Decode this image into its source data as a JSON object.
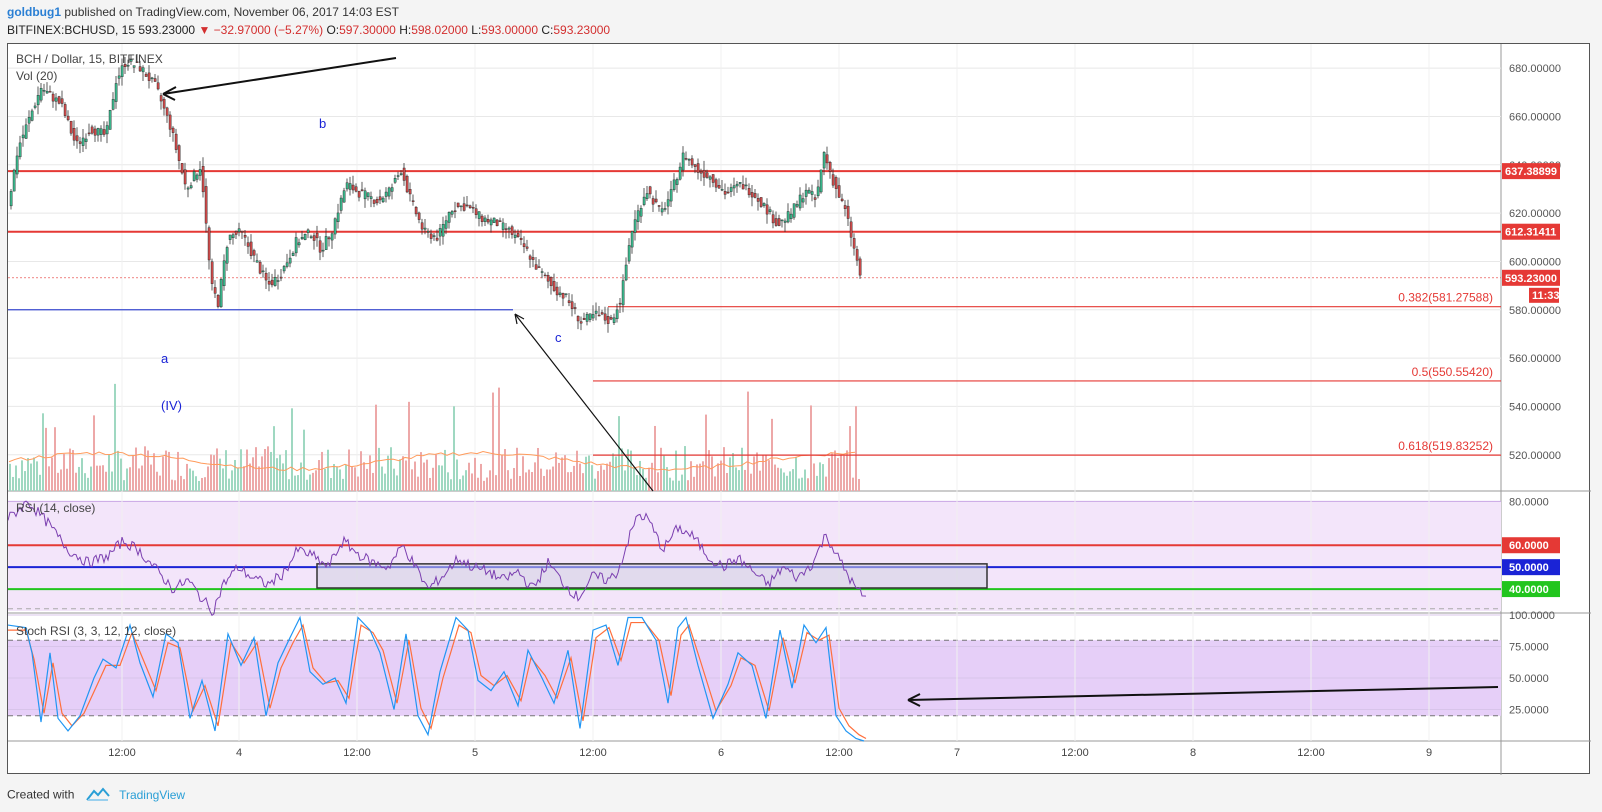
{
  "header": {
    "user": "goldbug1",
    "published": "published on TradingView.com, November 06, 2017 14:03 EST",
    "symbol": "BITFINEX:BCHUSD, 15",
    "last": "593.23000",
    "change": "▼ −32.97000 (−5.27%)",
    "ohlc": {
      "o_label": "O:",
      "o": "597.30000",
      "h_label": "H:",
      "h": "598.02000",
      "l_label": "L:",
      "l": "593.00000",
      "c_label": "C:",
      "c": "593.23000"
    }
  },
  "footer": {
    "created": "Created with",
    "brand": "TradingView"
  },
  "colors": {
    "up": "#3bb38a",
    "down": "#c94a4a",
    "level": "#e53935",
    "fib": "#e53935",
    "rsi": "#7b3fb0",
    "rsiBand": "#f3e5fa",
    "stochBand": "#e6cff8",
    "stochK": "#2196f3",
    "stochD": "#ff6f3c",
    "wave": "#1a23d6"
  },
  "chart_data": [
    {
      "type": "candlestick",
      "title": "BCH / Dollar, 15, BITFINEX",
      "volume_label": "Vol (20)",
      "ylim": [
        505,
        690
      ],
      "y_ticks": [
        "680.00000",
        "660.00000",
        "640.00000",
        "620.00000",
        "600.00000",
        "580.00000",
        "560.00000",
        "540.00000",
        "520.00000"
      ],
      "x_ticks": [
        "12:00",
        "4",
        "12:00",
        "5",
        "12:00",
        "6",
        "12:00",
        "7",
        "12:00",
        "8",
        "12:00",
        "9"
      ],
      "price_path": [
        [
          0,
          618
        ],
        [
          12,
          647
        ],
        [
          35,
          672
        ],
        [
          55,
          665
        ],
        [
          70,
          648
        ],
        [
          85,
          655
        ],
        [
          100,
          652
        ],
        [
          110,
          675
        ],
        [
          120,
          683
        ],
        [
          135,
          680
        ],
        [
          150,
          672
        ],
        [
          165,
          655
        ],
        [
          180,
          630
        ],
        [
          195,
          640
        ],
        [
          205,
          590
        ],
        [
          212,
          583
        ],
        [
          222,
          610
        ],
        [
          235,
          612
        ],
        [
          250,
          600
        ],
        [
          262,
          590
        ],
        [
          275,
          595
        ],
        [
          290,
          608
        ],
        [
          305,
          612
        ],
        [
          315,
          605
        ],
        [
          325,
          612
        ],
        [
          340,
          632
        ],
        [
          355,
          628
        ],
        [
          372,
          625
        ],
        [
          385,
          630
        ],
        [
          395,
          638
        ],
        [
          405,
          625
        ],
        [
          418,
          612
        ],
        [
          432,
          610
        ],
        [
          445,
          622
        ],
        [
          460,
          623
        ],
        [
          475,
          618
        ],
        [
          490,
          616
        ],
        [
          505,
          612
        ],
        [
          520,
          605
        ],
        [
          530,
          598
        ],
        [
          545,
          590
        ],
        [
          560,
          585
        ],
        [
          575,
          575
        ],
        [
          590,
          578
        ],
        [
          605,
          575
        ],
        [
          615,
          585
        ],
        [
          625,
          612
        ],
        [
          640,
          630
        ],
        [
          655,
          620
        ],
        [
          665,
          628
        ],
        [
          678,
          645
        ],
        [
          690,
          638
        ],
        [
          705,
          635
        ],
        [
          720,
          628
        ],
        [
          735,
          632
        ],
        [
          748,
          628
        ],
        [
          760,
          622
        ],
        [
          772,
          615
        ],
        [
          785,
          620
        ],
        [
          800,
          630
        ],
        [
          810,
          625
        ],
        [
          818,
          645
        ],
        [
          828,
          632
        ],
        [
          840,
          620
        ],
        [
          848,
          605
        ],
        [
          852,
          598
        ],
        [
          855,
          593
        ]
      ],
      "levels": [
        {
          "label": "637.38899",
          "value": 637.38899
        },
        {
          "label": "612.31411",
          "value": 612.31411
        }
      ],
      "last_price_label": "593.23000",
      "countdown_label": "11:33",
      "blue_line_value": 580,
      "fib_levels": [
        {
          "label": "0.382(581.27588)",
          "value": 581.27588
        },
        {
          "label": "0.5(550.55420)",
          "value": 550.5542
        },
        {
          "label": "0.618(519.83252)",
          "value": 519.83252
        }
      ],
      "wave_labels": {
        "a": "a",
        "b": "b",
        "c": "c",
        "iv": "(IV)"
      }
    },
    {
      "type": "line",
      "title": "RSI (14, close)",
      "ylim": [
        30,
        82
      ],
      "y_ticks": [
        "80.0000"
      ],
      "levels": [
        {
          "label": "60.0000",
          "value": 60,
          "color": "#e53935"
        },
        {
          "label": "50.0000",
          "value": 50,
          "color": "#1a23d6"
        },
        {
          "label": "40.0000",
          "value": 40,
          "color": "#22c51e"
        }
      ],
      "series": [
        {
          "values": [
            [
              0,
              72
            ],
            [
              20,
              80
            ],
            [
              40,
              70
            ],
            [
              60,
              58
            ],
            [
              80,
              52
            ],
            [
              100,
              55
            ],
            [
              115,
              62
            ],
            [
              130,
              58
            ],
            [
              150,
              48
            ],
            [
              165,
              40
            ],
            [
              180,
              44
            ],
            [
              195,
              35
            ],
            [
              205,
              30
            ],
            [
              215,
              42
            ],
            [
              230,
              50
            ],
            [
              245,
              45
            ],
            [
              260,
              42
            ],
            [
              275,
              47
            ],
            [
              290,
              58
            ],
            [
              305,
              55
            ],
            [
              320,
              50
            ],
            [
              335,
              62
            ],
            [
              350,
              56
            ],
            [
              365,
              52
            ],
            [
              380,
              50
            ],
            [
              395,
              60
            ],
            [
              410,
              48
            ],
            [
              420,
              40
            ],
            [
              435,
              46
            ],
            [
              450,
              54
            ],
            [
              465,
              50
            ],
            [
              480,
              48
            ],
            [
              495,
              44
            ],
            [
              510,
              48
            ],
            [
              525,
              40
            ],
            [
              540,
              52
            ],
            [
              555,
              43
            ],
            [
              570,
              36
            ],
            [
              585,
              46
            ],
            [
              600,
              44
            ],
            [
              610,
              48
            ],
            [
              620,
              62
            ],
            [
              630,
              74
            ],
            [
              640,
              72
            ],
            [
              655,
              58
            ],
            [
              670,
              68
            ],
            [
              685,
              64
            ],
            [
              700,
              55
            ],
            [
              715,
              50
            ],
            [
              730,
              54
            ],
            [
              745,
              48
            ],
            [
              760,
              42
            ],
            [
              775,
              50
            ],
            [
              790,
              45
            ],
            [
              805,
              52
            ],
            [
              818,
              65
            ],
            [
              828,
              56
            ],
            [
              838,
              48
            ],
            [
              848,
              40
            ],
            [
              858,
              36
            ]
          ]
        }
      ]
    },
    {
      "type": "line",
      "title": "Stoch RSI (3, 3, 12, 12, close)",
      "ylim": [
        0,
        100
      ],
      "y_ticks": [
        "100.0000",
        "75.0000",
        "50.0000",
        "25.0000"
      ],
      "series": [
        {
          "name": "K",
          "values": [
            [
              0,
              92
            ],
            [
              18,
              90
            ],
            [
              24,
              70
            ],
            [
              33,
              15
            ],
            [
              42,
              70
            ],
            [
              50,
              18
            ],
            [
              60,
              8
            ],
            [
              72,
              20
            ],
            [
              86,
              50
            ],
            [
              95,
              65
            ],
            [
              108,
              58
            ],
            [
              122,
              92
            ],
            [
              132,
              62
            ],
            [
              145,
              35
            ],
            [
              158,
              85
            ],
            [
              170,
              78
            ],
            [
              182,
              18
            ],
            [
              194,
              48
            ],
            [
              207,
              8
            ],
            [
              220,
              85
            ],
            [
              233,
              60
            ],
            [
              246,
              82
            ],
            [
              258,
              20
            ],
            [
              270,
              62
            ],
            [
              282,
              82
            ],
            [
              292,
              98
            ],
            [
              302,
              55
            ],
            [
              315,
              45
            ],
            [
              327,
              50
            ],
            [
              338,
              30
            ],
            [
              350,
              98
            ],
            [
              362,
              88
            ],
            [
              372,
              70
            ],
            [
              386,
              25
            ],
            [
              398,
              85
            ],
            [
              410,
              20
            ],
            [
              420,
              5
            ],
            [
              432,
              55
            ],
            [
              448,
              98
            ],
            [
              460,
              88
            ],
            [
              470,
              48
            ],
            [
              483,
              40
            ],
            [
              496,
              55
            ],
            [
              510,
              28
            ],
            [
              520,
              72
            ],
            [
              534,
              50
            ],
            [
              546,
              30
            ],
            [
              560,
              72
            ],
            [
              572,
              10
            ],
            [
              585,
              88
            ],
            [
              598,
              92
            ],
            [
              610,
              60
            ],
            [
              620,
              98
            ],
            [
              634,
              98
            ],
            [
              648,
              80
            ],
            [
              660,
              30
            ],
            [
              670,
              90
            ],
            [
              678,
              98
            ],
            [
              690,
              60
            ],
            [
              705,
              18
            ],
            [
              720,
              45
            ],
            [
              730,
              70
            ],
            [
              744,
              60
            ],
            [
              758,
              18
            ],
            [
              772,
              88
            ],
            [
              784,
              42
            ],
            [
              796,
              92
            ],
            [
              808,
              78
            ],
            [
              818,
              90
            ],
            [
              828,
              20
            ],
            [
              838,
              8
            ],
            [
              848,
              2
            ],
            [
              856,
              0
            ]
          ]
        },
        {
          "name": "D",
          "values": [
            [
              0,
              88
            ],
            [
              18,
              88
            ],
            [
              26,
              65
            ],
            [
              36,
              22
            ],
            [
              45,
              62
            ],
            [
              54,
              22
            ],
            [
              64,
              12
            ],
            [
              76,
              22
            ],
            [
              90,
              46
            ],
            [
              98,
              60
            ],
            [
              112,
              60
            ],
            [
              124,
              86
            ],
            [
              135,
              65
            ],
            [
              148,
              40
            ],
            [
              160,
              78
            ],
            [
              172,
              74
            ],
            [
              185,
              24
            ],
            [
              197,
              44
            ],
            [
              210,
              12
            ],
            [
              223,
              78
            ],
            [
              236,
              62
            ],
            [
              249,
              78
            ],
            [
              262,
              26
            ],
            [
              273,
              58
            ],
            [
              285,
              78
            ],
            [
              295,
              92
            ],
            [
              305,
              58
            ],
            [
              318,
              46
            ],
            [
              330,
              48
            ],
            [
              341,
              34
            ],
            [
              353,
              92
            ],
            [
              365,
              86
            ],
            [
              375,
              72
            ],
            [
              389,
              30
            ],
            [
              401,
              80
            ],
            [
              413,
              26
            ],
            [
              423,
              10
            ],
            [
              435,
              50
            ],
            [
              451,
              92
            ],
            [
              463,
              86
            ],
            [
              473,
              52
            ],
            [
              486,
              44
            ],
            [
              499,
              52
            ],
            [
              513,
              32
            ],
            [
              523,
              66
            ],
            [
              537,
              52
            ],
            [
              549,
              34
            ],
            [
              563,
              66
            ],
            [
              575,
              16
            ],
            [
              588,
              82
            ],
            [
              601,
              90
            ],
            [
              613,
              64
            ],
            [
              623,
              94
            ],
            [
              637,
              94
            ],
            [
              651,
              80
            ],
            [
              663,
              36
            ],
            [
              673,
              84
            ],
            [
              681,
              92
            ],
            [
              693,
              62
            ],
            [
              708,
              24
            ],
            [
              723,
              44
            ],
            [
              733,
              66
            ],
            [
              747,
              60
            ],
            [
              761,
              24
            ],
            [
              775,
              82
            ],
            [
              787,
              46
            ],
            [
              799,
              86
            ],
            [
              811,
              80
            ],
            [
              821,
              84
            ],
            [
              831,
              26
            ],
            [
              841,
              12
            ],
            [
              851,
              5
            ],
            [
              858,
              2
            ]
          ]
        }
      ]
    }
  ]
}
